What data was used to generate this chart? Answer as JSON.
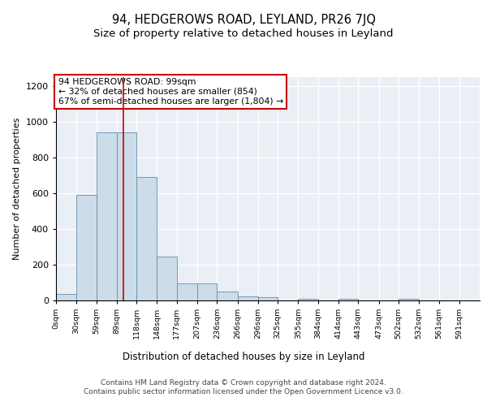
{
  "title": "94, HEDGEROWS ROAD, LEYLAND, PR26 7JQ",
  "subtitle": "Size of property relative to detached houses in Leyland",
  "xlabel": "Distribution of detached houses by size in Leyland",
  "ylabel": "Number of detached properties",
  "bin_labels": [
    "0sqm",
    "30sqm",
    "59sqm",
    "89sqm",
    "118sqm",
    "148sqm",
    "177sqm",
    "207sqm",
    "236sqm",
    "266sqm",
    "296sqm",
    "325sqm",
    "355sqm",
    "384sqm",
    "414sqm",
    "443sqm",
    "473sqm",
    "502sqm",
    "532sqm",
    "561sqm",
    "591sqm"
  ],
  "bin_edges": [
    0,
    30,
    59,
    89,
    118,
    148,
    177,
    207,
    236,
    266,
    296,
    325,
    355,
    384,
    414,
    443,
    473,
    502,
    532,
    561,
    591,
    621
  ],
  "bar_heights": [
    35,
    590,
    940,
    940,
    690,
    245,
    95,
    95,
    50,
    25,
    20,
    0,
    10,
    0,
    10,
    0,
    0,
    10,
    0,
    0,
    0
  ],
  "bar_color": "#ccdce8",
  "bar_edge_color": "#6090b0",
  "property_size": 99,
  "vline_color": "#cc0000",
  "annotation_text": "94 HEDGEROWS ROAD: 99sqm\n← 32% of detached houses are smaller (854)\n67% of semi-detached houses are larger (1,804) →",
  "annotation_box_color": "#ffffff",
  "annotation_box_edge_color": "#cc0000",
  "ylim": [
    0,
    1250
  ],
  "yticks": [
    0,
    200,
    400,
    600,
    800,
    1000,
    1200
  ],
  "background_color": "#eaeef5",
  "footer_text": "Contains HM Land Registry data © Crown copyright and database right 2024.\nContains public sector information licensed under the Open Government Licence v3.0.",
  "title_fontsize": 10.5,
  "subtitle_fontsize": 9.5
}
